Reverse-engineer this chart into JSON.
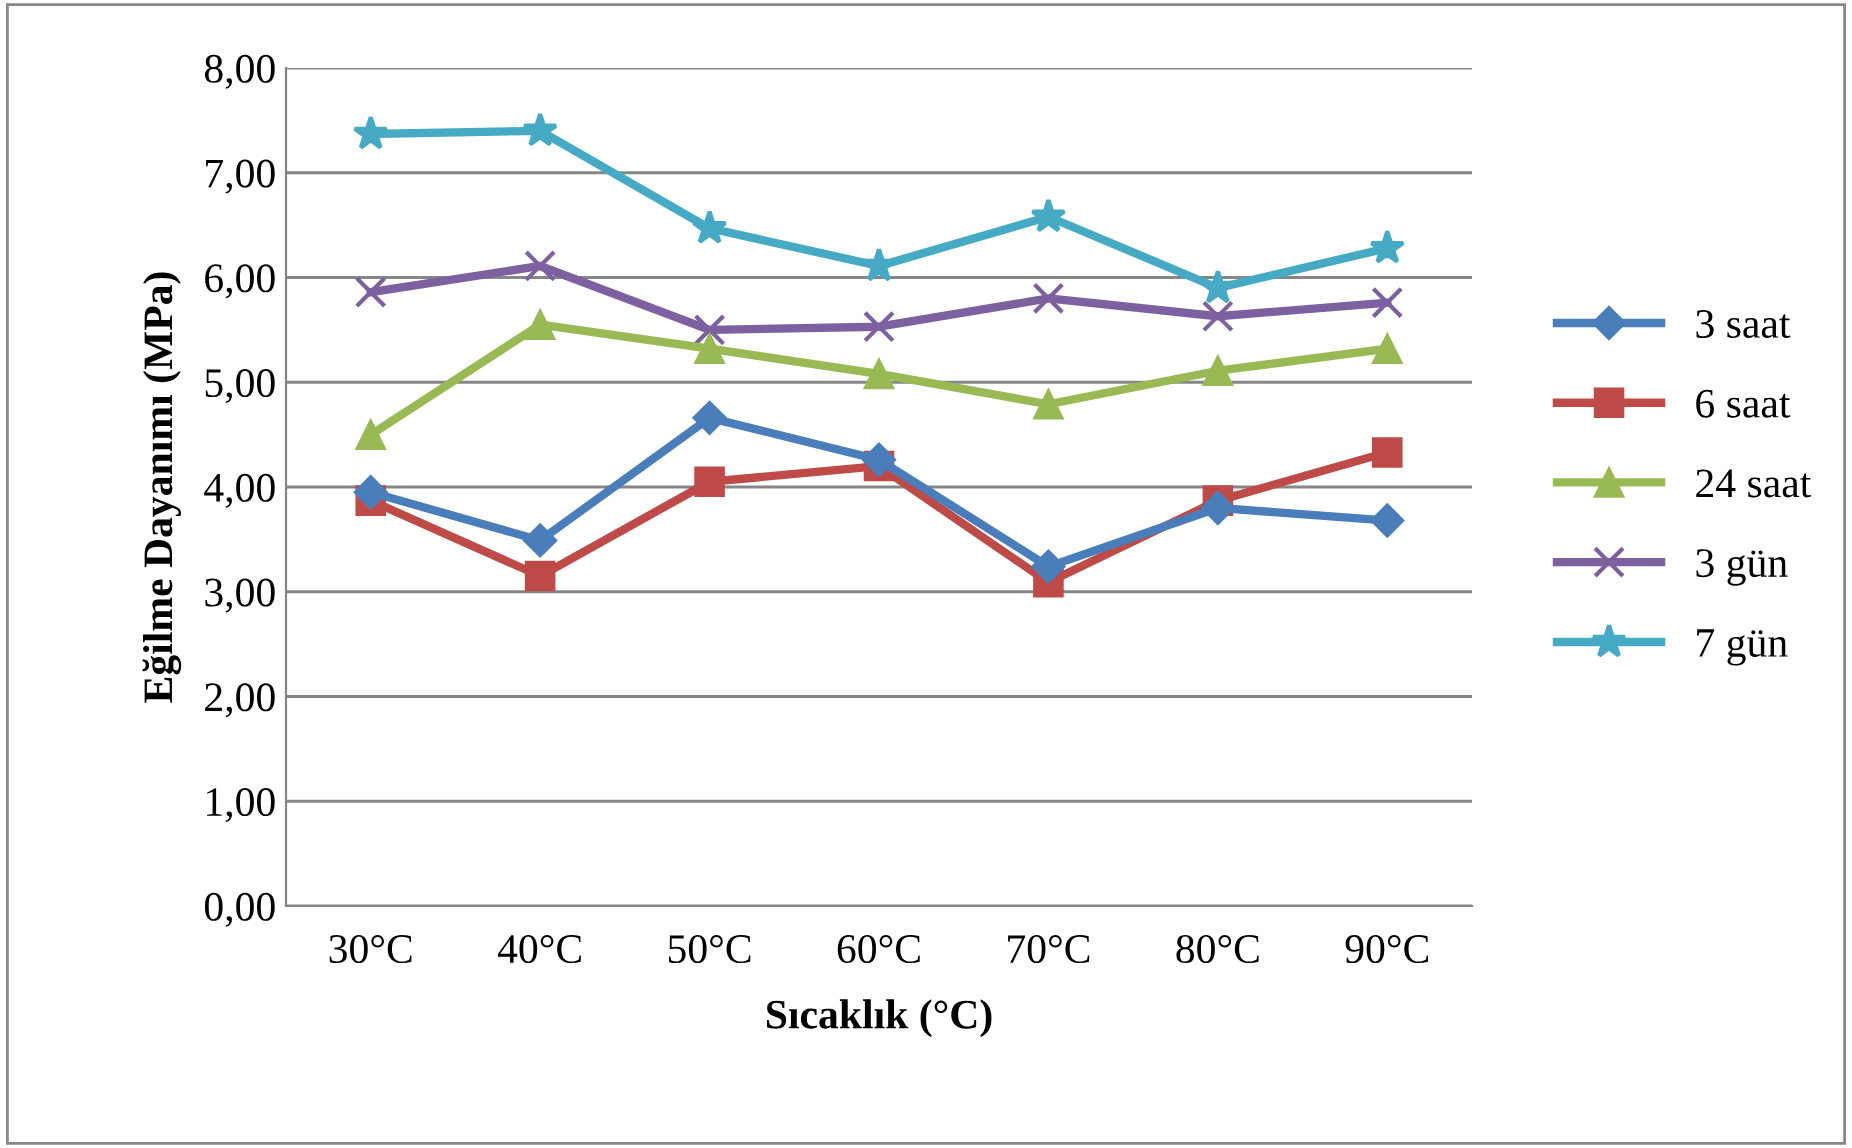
{
  "chart_data": {
    "type": "line",
    "xlabel": "Sıcaklık (°C)",
    "ylabel": "Eğilme Dayanımı (MPa)",
    "categories": [
      "30°C",
      "40°C",
      "50°C",
      "60°C",
      "70°C",
      "80°C",
      "90°C"
    ],
    "series": [
      {
        "name": "3 saat",
        "color": "#4a7ebb",
        "marker": "diamond",
        "values": [
          3.95,
          3.49,
          4.66,
          4.26,
          3.24,
          3.8,
          3.68
        ]
      },
      {
        "name": "6 saat",
        "color": "#be4b48",
        "marker": "square",
        "values": [
          3.87,
          3.15,
          4.05,
          4.2,
          3.09,
          3.87,
          4.33
        ]
      },
      {
        "name": "24 saat",
        "color": "#98b954",
        "marker": "triangle",
        "values": [
          4.5,
          5.55,
          5.32,
          5.08,
          4.79,
          5.11,
          5.32
        ]
      },
      {
        "name": "3 gün",
        "color": "#7d60a0",
        "marker": "cross",
        "values": [
          5.86,
          6.11,
          5.5,
          5.53,
          5.8,
          5.63,
          5.76
        ]
      },
      {
        "name": "7 gün",
        "color": "#46aac5",
        "marker": "star",
        "values": [
          7.37,
          7.4,
          6.47,
          6.11,
          6.58,
          5.9,
          6.28
        ]
      }
    ],
    "ylim": [
      0,
      8
    ],
    "yticks": [
      {
        "value": 0,
        "label": "0,00"
      },
      {
        "value": 1,
        "label": "1,00"
      },
      {
        "value": 2,
        "label": "2,00"
      },
      {
        "value": 3,
        "label": "3,00"
      },
      {
        "value": 4,
        "label": "4,00"
      },
      {
        "value": 5,
        "label": "5,00"
      },
      {
        "value": 6,
        "label": "6,00"
      },
      {
        "value": 7,
        "label": "7,00"
      },
      {
        "value": 8,
        "label": "8,00"
      }
    ],
    "grid": "y",
    "legend": "right",
    "line_style": "solid"
  }
}
